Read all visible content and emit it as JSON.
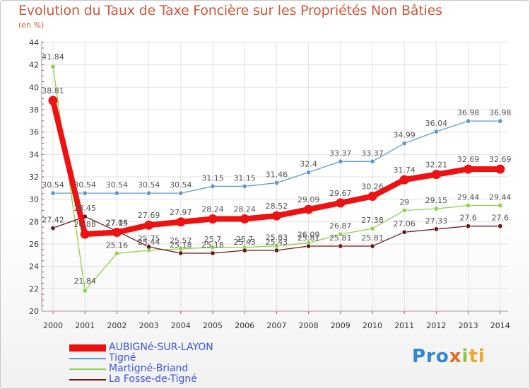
{
  "title": "Evolution du Taux de Taxe Foncière sur les Propriétés Non Bâties",
  "subtitle": "(en %)",
  "logo": {
    "p": "Pro",
    "x": "x",
    "i": "i",
    "ti": "ti"
  },
  "chart_data": {
    "type": "line",
    "title": "Evolution du Taux de Taxe Foncière sur les Propriétés Non Bâties",
    "ylabel": "(en %)",
    "xlabel": "",
    "x": [
      2000,
      2001,
      2002,
      2003,
      2004,
      2005,
      2006,
      2007,
      2008,
      2009,
      2010,
      2011,
      2012,
      2013,
      2014
    ],
    "ylim": [
      20,
      44
    ],
    "yticks": [
      20,
      22,
      24,
      26,
      28,
      30,
      32,
      34,
      36,
      38,
      40,
      42,
      44
    ],
    "grid": true,
    "legend": "bottom-left",
    "series": [
      {
        "name": "AUBIGNé-SUR-LAYON",
        "color": "#ee1111",
        "width": 8,
        "values": [
          38.81,
          26.88,
          27.04,
          27.69,
          27.97,
          28.24,
          28.24,
          28.52,
          29.09,
          29.67,
          30.26,
          31.74,
          32.21,
          32.69,
          32.69
        ],
        "labels": [
          "38.81",
          "26.88",
          "27.04",
          "27.69",
          "27.97",
          "28.24",
          "28.24",
          "28.52",
          "29.09",
          "29.67",
          "30.26",
          "31.74",
          "32.21",
          "32.69",
          "32.69"
        ]
      },
      {
        "name": "Tigné",
        "color": "#5b9bd5",
        "width": 1.3,
        "values": [
          30.54,
          30.54,
          30.54,
          30.54,
          30.54,
          31.15,
          31.15,
          31.46,
          32.4,
          33.37,
          33.37,
          34.99,
          36.04,
          36.98,
          36.98
        ],
        "labels": [
          "30.54",
          "30.54",
          "30.54",
          "30.54",
          "30.54",
          "31.15",
          "31.15",
          "31.46",
          "32.4",
          "33.37",
          "33.37",
          "34.99",
          "36.04",
          "36.98",
          "36.98"
        ]
      },
      {
        "name": "Martigné-Briand",
        "color": "#8ed24a",
        "width": 1.3,
        "values": [
          41.84,
          21.84,
          25.16,
          25.44,
          25.57,
          25.7,
          25.7,
          25.83,
          26.09,
          26.87,
          27.38,
          29,
          29.15,
          29.44,
          29.44
        ],
        "labels": [
          "41.84",
          "21.84",
          "25.16",
          "25.44",
          "25.57",
          "25.7",
          "25.7",
          "25.83",
          "26.09",
          "26.87",
          "27.38",
          "29",
          "29.15",
          "29.44",
          "29.44"
        ]
      },
      {
        "name": "La Fosse-de-Tigné",
        "color": "#6b1a1a",
        "width": 1.3,
        "values": [
          27.42,
          28.45,
          27.15,
          25.75,
          25.18,
          25.18,
          25.43,
          25.43,
          25.81,
          25.81,
          25.81,
          27.06,
          27.33,
          27.6,
          27.6
        ],
        "labels": [
          "27.42",
          "28.45",
          "27.15",
          "25.75",
          "25.18",
          "25.18",
          "25.43",
          "25.43",
          "25.81",
          "25.81",
          "25.81",
          "27.06",
          "27.33",
          "27.6",
          "27.6"
        ]
      }
    ]
  }
}
